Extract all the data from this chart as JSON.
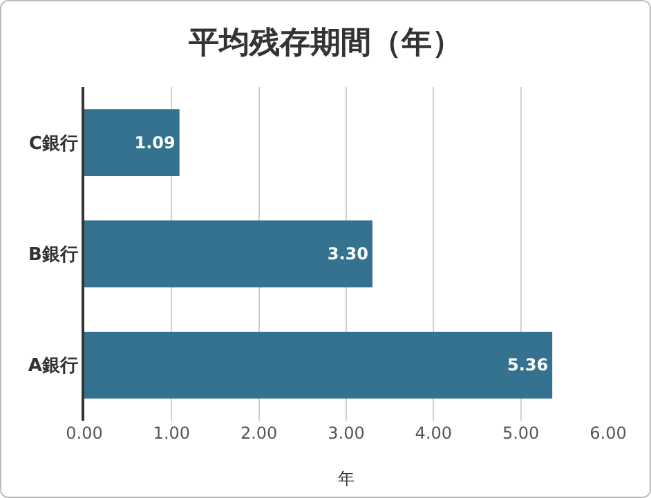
{
  "chart_data": {
    "type": "bar",
    "orientation": "horizontal",
    "title": "平均残存期間（年）",
    "xlabel": "年",
    "categories": [
      "C銀行",
      "B銀行",
      "A銀行"
    ],
    "values": [
      1.09,
      3.3,
      5.36
    ],
    "color": "#35728f",
    "value_labels": [
      "1.09",
      "3.30",
      "5.36"
    ],
    "xlim": [
      0,
      6
    ],
    "xticks": [
      {
        "value": 0,
        "label": "0.00"
      },
      {
        "value": 1,
        "label": "1.00"
      },
      {
        "value": 2,
        "label": "2.00"
      },
      {
        "value": 3,
        "label": "3.00"
      },
      {
        "value": 4,
        "label": "4.00"
      },
      {
        "value": 5,
        "label": "5.00"
      },
      {
        "value": 6,
        "label": "6.00"
      }
    ],
    "grid": "x"
  }
}
